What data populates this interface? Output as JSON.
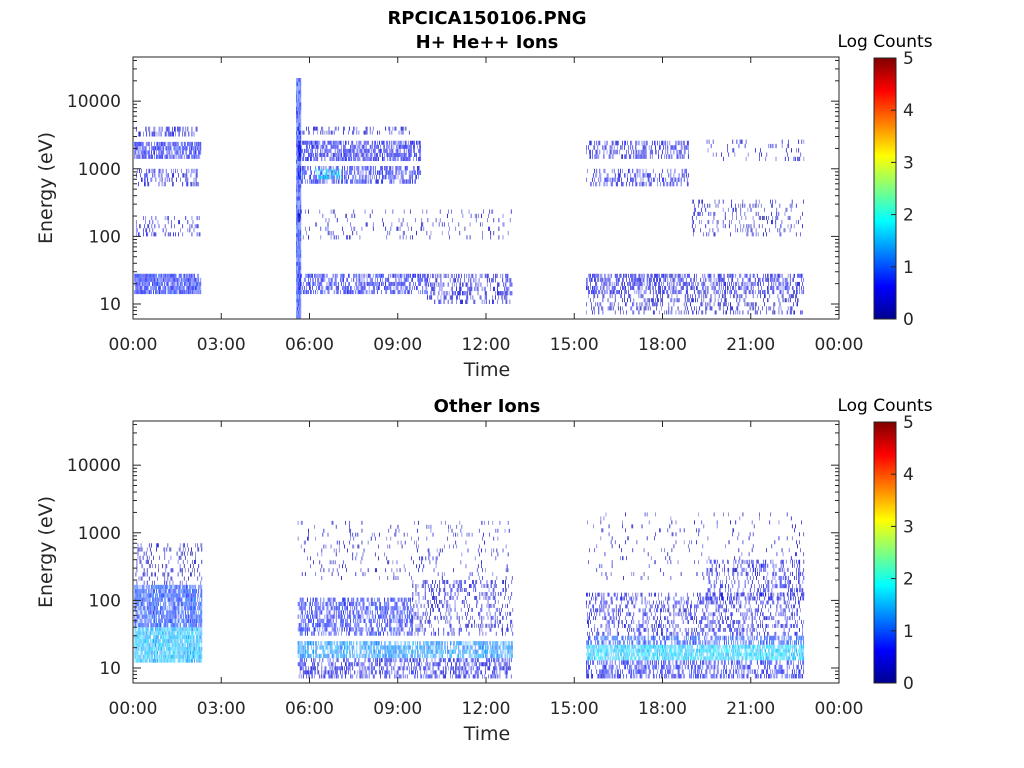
{
  "figure": {
    "filename": "RPCICA150106.PNG"
  },
  "panels": [
    {
      "id": "h-he",
      "title": "H+ He++ Ions",
      "xlabel": "Time",
      "ylabel": "Energy (eV)",
      "colorbar_title": "Log Counts"
    },
    {
      "id": "other",
      "title": "Other Ions",
      "xlabel": "Time",
      "ylabel": "Energy (eV)",
      "colorbar_title": "Log Counts"
    }
  ],
  "chart_data": [
    {
      "type": "heatmap",
      "title": "H+ He++ Ions",
      "xlabel": "Time",
      "ylabel": "Energy (eV)",
      "x_unit": "hours",
      "xlim": [
        0,
        24
      ],
      "x_ticks": [
        0,
        3,
        6,
        9,
        12,
        15,
        18,
        21,
        24
      ],
      "x_tick_labels": [
        "00:00",
        "03:00",
        "06:00",
        "09:00",
        "12:00",
        "15:00",
        "18:00",
        "21:00",
        "00:00"
      ],
      "y_scale": "log",
      "ylim": [
        6,
        45000
      ],
      "y_ticks": [
        10,
        100,
        1000,
        10000
      ],
      "y_tick_labels": [
        "10",
        "100",
        "1000",
        "10000"
      ],
      "colorbar": {
        "label": "Log Counts",
        "range": [
          0,
          5
        ],
        "ticks": [
          0,
          1,
          2,
          3,
          4,
          5
        ],
        "tick_labels": [
          "0",
          "1",
          "2",
          "3",
          "4",
          "5"
        ],
        "colormap": "jet"
      },
      "regions": [
        {
          "t": [
            0.05,
            2.3
          ],
          "e": [
            14,
            28
          ],
          "level": 0.7,
          "density": 0.9
        },
        {
          "t": [
            0.05,
            2.3
          ],
          "e": [
            1400,
            2500
          ],
          "level": 0.6,
          "density": 0.8
        },
        {
          "t": [
            0.1,
            2.2
          ],
          "e": [
            3000,
            4200
          ],
          "level": 0.4,
          "density": 0.5
        },
        {
          "t": [
            0.1,
            2.2
          ],
          "e": [
            550,
            1000
          ],
          "level": 0.4,
          "density": 0.4
        },
        {
          "t": [
            0.1,
            2.3
          ],
          "e": [
            100,
            200
          ],
          "level": 0.35,
          "density": 0.25
        },
        {
          "t": [
            5.55,
            5.7
          ],
          "e": [
            6,
            22000
          ],
          "level": 0.8,
          "density": 1.0
        },
        {
          "t": [
            5.6,
            10.0
          ],
          "e": [
            14,
            28
          ],
          "level": 0.6,
          "density": 0.6
        },
        {
          "t": [
            10.0,
            12.9
          ],
          "e": [
            10,
            28
          ],
          "level": 0.4,
          "density": 0.4
        },
        {
          "t": [
            5.6,
            9.8
          ],
          "e": [
            1300,
            2600
          ],
          "level": 0.55,
          "density": 0.7
        },
        {
          "t": [
            5.6,
            9.8
          ],
          "e": [
            600,
            1100
          ],
          "level": 0.6,
          "density": 0.6
        },
        {
          "t": [
            6.2,
            7.1
          ],
          "e": [
            700,
            1000
          ],
          "level": 1.7,
          "density": 0.6
        },
        {
          "t": [
            5.6,
            9.5
          ],
          "e": [
            3200,
            4200
          ],
          "level": 0.35,
          "density": 0.3
        },
        {
          "t": [
            5.6,
            12.9
          ],
          "e": [
            90,
            250
          ],
          "level": 0.3,
          "density": 0.12
        },
        {
          "t": [
            15.4,
            22.8
          ],
          "e": [
            14,
            28
          ],
          "level": 0.45,
          "density": 0.55
        },
        {
          "t": [
            15.4,
            22.8
          ],
          "e": [
            7,
            14
          ],
          "level": 0.3,
          "density": 0.3
        },
        {
          "t": [
            15.4,
            18.9
          ],
          "e": [
            1400,
            2600
          ],
          "level": 0.45,
          "density": 0.45
        },
        {
          "t": [
            15.4,
            18.9
          ],
          "e": [
            550,
            1000
          ],
          "level": 0.5,
          "density": 0.35
        },
        {
          "t": [
            19.0,
            22.8
          ],
          "e": [
            100,
            350
          ],
          "level": 0.3,
          "density": 0.18
        },
        {
          "t": [
            19.5,
            22.8
          ],
          "e": [
            1300,
            2700
          ],
          "level": 0.3,
          "density": 0.15
        }
      ]
    },
    {
      "type": "heatmap",
      "title": "Other Ions",
      "xlabel": "Time",
      "ylabel": "Energy (eV)",
      "x_unit": "hours",
      "xlim": [
        0,
        24
      ],
      "x_ticks": [
        0,
        3,
        6,
        9,
        12,
        15,
        18,
        21,
        24
      ],
      "x_tick_labels": [
        "00:00",
        "03:00",
        "06:00",
        "09:00",
        "12:00",
        "15:00",
        "18:00",
        "21:00",
        "00:00"
      ],
      "y_scale": "log",
      "ylim": [
        6,
        45000
      ],
      "y_ticks": [
        10,
        100,
        1000,
        10000
      ],
      "y_tick_labels": [
        "10",
        "100",
        "1000",
        "10000"
      ],
      "colorbar": {
        "label": "Log Counts",
        "range": [
          0,
          5
        ],
        "ticks": [
          0,
          1,
          2,
          3,
          4,
          5
        ],
        "tick_labels": [
          "0",
          "1",
          "2",
          "3",
          "4",
          "5"
        ],
        "colormap": "jet"
      },
      "regions": [
        {
          "t": [
            0.05,
            2.35
          ],
          "e": [
            12,
            40
          ],
          "level": 1.5,
          "density": 0.95
        },
        {
          "t": [
            0.05,
            2.35
          ],
          "e": [
            40,
            170
          ],
          "level": 0.9,
          "density": 0.85
        },
        {
          "t": [
            0.05,
            2.35
          ],
          "e": [
            170,
            700
          ],
          "level": 0.3,
          "density": 0.25
        },
        {
          "t": [
            5.6,
            12.9
          ],
          "e": [
            14,
            25
          ],
          "level": 1.3,
          "density": 0.75
        },
        {
          "t": [
            5.6,
            12.9
          ],
          "e": [
            7,
            14
          ],
          "level": 0.5,
          "density": 0.5
        },
        {
          "t": [
            5.6,
            9.5
          ],
          "e": [
            30,
            110
          ],
          "level": 0.7,
          "density": 0.6
        },
        {
          "t": [
            9.5,
            12.9
          ],
          "e": [
            30,
            200
          ],
          "level": 0.4,
          "density": 0.3
        },
        {
          "t": [
            5.6,
            12.9
          ],
          "e": [
            200,
            1500
          ],
          "level": 0.3,
          "density": 0.08
        },
        {
          "t": [
            15.4,
            22.8
          ],
          "e": [
            13,
            22
          ],
          "level": 1.6,
          "density": 0.85
        },
        {
          "t": [
            15.4,
            22.8
          ],
          "e": [
            7,
            13
          ],
          "level": 0.6,
          "density": 0.55
        },
        {
          "t": [
            15.4,
            22.8
          ],
          "e": [
            22,
            30
          ],
          "level": 0.9,
          "density": 0.6
        },
        {
          "t": [
            15.4,
            22.8
          ],
          "e": [
            30,
            130
          ],
          "level": 0.45,
          "density": 0.35
        },
        {
          "t": [
            19.5,
            22.8
          ],
          "e": [
            100,
            400
          ],
          "level": 0.5,
          "density": 0.3
        },
        {
          "t": [
            15.4,
            22.8
          ],
          "e": [
            200,
            2000
          ],
          "level": 0.3,
          "density": 0.06
        }
      ]
    }
  ]
}
